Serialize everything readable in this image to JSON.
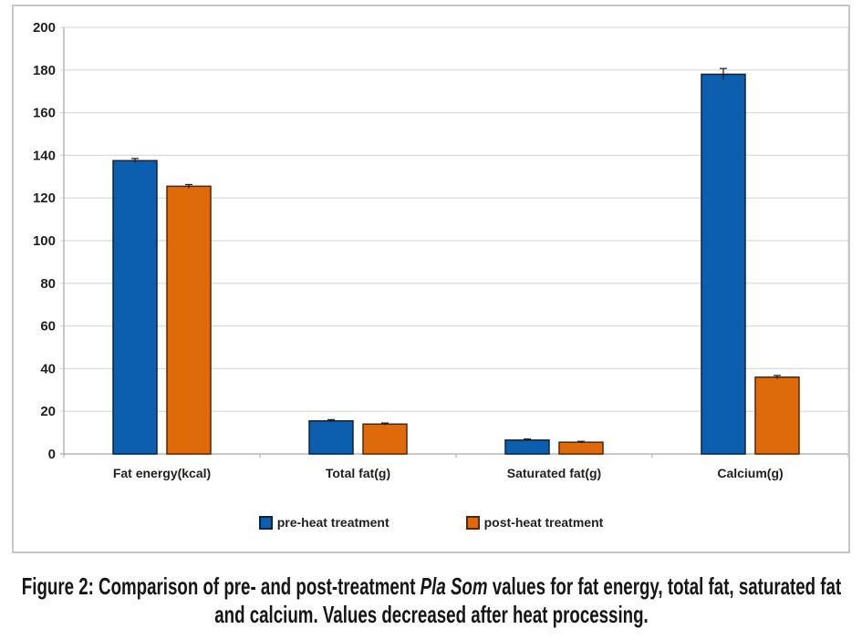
{
  "chart_data": {
    "type": "bar",
    "title": "",
    "xlabel": "",
    "ylabel": "",
    "categories": [
      "Fat energy(kcal)",
      "Total fat(g)",
      "Saturated fat(g)",
      "Calcium(g)"
    ],
    "series": [
      {
        "name": "pre-heat treatment",
        "color": "#0c5fae",
        "border_color": "#0b2240",
        "values": [
          137.5,
          15.5,
          6.5,
          178
        ],
        "errors": [
          1,
          0.6,
          0.5,
          2.7
        ]
      },
      {
        "name": "post-heat treatment",
        "color": "#de6a0a",
        "border_color": "#5a2400",
        "values": [
          125.5,
          14,
          5.5,
          36
        ],
        "errors": [
          0.8,
          0.5,
          0.4,
          0.8
        ]
      }
    ],
    "ylim": [
      0,
      200
    ],
    "ytick_step": 20,
    "ytick_labels": [
      "0",
      "20",
      "40",
      "60",
      "80",
      "100",
      "120",
      "140",
      "160",
      "180",
      "200"
    ],
    "grid": true,
    "legend_position": "bottom-inside",
    "gridline_color": "#d9d9d9",
    "axis_color": "#b5b5b5",
    "error_bar_color": "#1a1a1a",
    "text_color": "#1f1f1f"
  },
  "caption": {
    "prefix": "Figure 2: Comparison of pre- and post-treatment ",
    "italic": "Pla Som",
    "suffix": " values for fat energy, total fat, saturated fat and calcium. Values decreased after heat processing."
  }
}
